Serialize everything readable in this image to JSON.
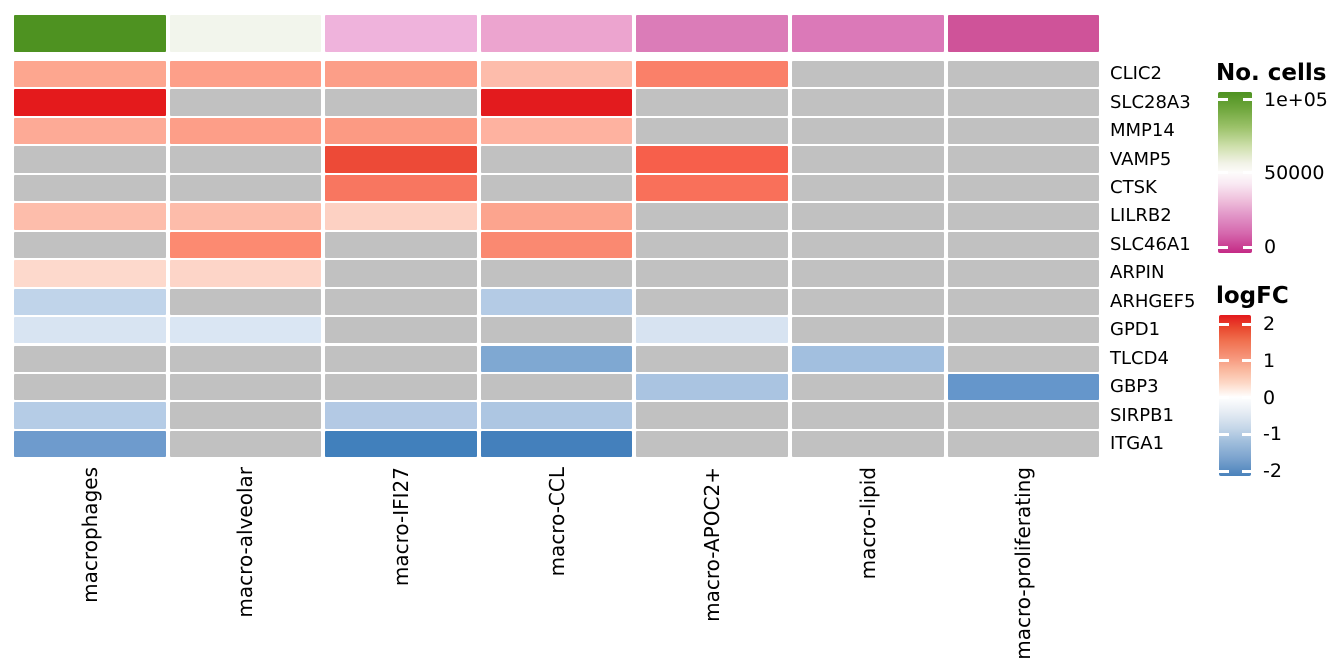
{
  "chart_data": {
    "type": "heatmap",
    "columns": [
      "macrophages",
      "macro-alveolar",
      "macro-IFI27",
      "macro-CCL",
      "macro-APOC2+",
      "macro-lipid",
      "macro-proliferating"
    ],
    "genes": [
      "CLIC2",
      "SLC28A3",
      "MMP14",
      "VAMP5",
      "CTSK",
      "LILRB2",
      "SLC46A1",
      "ARPIN",
      "ARHGEF5",
      "GPD1",
      "TLCD4",
      "GBP3",
      "SIRPB1",
      "ITGA1"
    ],
    "no_data_color": "#c1c1c1",
    "annotation": {
      "label": "No. cells",
      "colors": [
        "#4e9221",
        "#f2f5ec",
        "#efb3dc",
        "#eca4cf",
        "#db7cb8",
        "#db79b8",
        "#cf5399"
      ],
      "approx_values": [
        97000,
        52000,
        33000,
        30000,
        20000,
        20000,
        12000
      ]
    },
    "cells": {
      "colors": [
        [
          "#fda68f",
          "#fd9f89",
          "#fc9e88",
          "#fdbcab",
          "#fa8069",
          "#c1c1c1",
          "#c1c1c1"
        ],
        [
          "#e41a1c",
          "#c1c1c1",
          "#c1c1c1",
          "#e31b1e",
          "#c1c1c1",
          "#c1c1c1",
          "#c1c1c1"
        ],
        [
          "#fdaa96",
          "#fd9e88",
          "#fc9a83",
          "#feb2a0",
          "#c1c1c1",
          "#c1c1c1",
          "#c1c1c1"
        ],
        [
          "#c1c1c1",
          "#c1c1c1",
          "#ed4a37",
          "#c1c1c1",
          "#f75f4b",
          "#c1c1c1",
          "#c1c1c1"
        ],
        [
          "#c1c1c1",
          "#c1c1c1",
          "#f87660",
          "#c1c1c1",
          "#f9705a",
          "#c1c1c1",
          "#c1c1c1"
        ],
        [
          "#fdbdab",
          "#fdbcaa",
          "#fdd1c3",
          "#fca48e",
          "#c1c1c1",
          "#c1c1c1",
          "#c1c1c1"
        ],
        [
          "#c1c1c1",
          "#fc8a71",
          "#c1c1c1",
          "#fa8971",
          "#c1c1c1",
          "#c1c1c1",
          "#c1c1c1"
        ],
        [
          "#fdd9cc",
          "#fdd5c8",
          "#c1c1c1",
          "#c1c1c1",
          "#c1c1c1",
          "#c1c1c1",
          "#c1c1c1"
        ],
        [
          "#c0d4ea",
          "#c1c1c1",
          "#c1c1c1",
          "#b4cbe5",
          "#c1c1c1",
          "#c1c1c1",
          "#c1c1c1"
        ],
        [
          "#d8e4f2",
          "#dae6f3",
          "#c1c1c1",
          "#c1c1c1",
          "#d7e3f1",
          "#c1c1c1",
          "#c1c1c1"
        ],
        [
          "#c1c1c1",
          "#c1c1c1",
          "#c1c1c1",
          "#7fa8d2",
          "#c1c1c1",
          "#a2bfdf",
          "#c1c1c1"
        ],
        [
          "#c1c1c1",
          "#c1c1c1",
          "#c1c1c1",
          "#c1c1c1",
          "#aac4e1",
          "#c1c1c1",
          "#6596cb"
        ],
        [
          "#b5cce6",
          "#c1c1c1",
          "#b3c9e4",
          "#adc6e2",
          "#c1c1c1",
          "#c1c1c1",
          "#c1c1c1"
        ],
        [
          "#6e9bcd",
          "#c1c1c1",
          "#4180bc",
          "#4480bc",
          "#c1c1c1",
          "#c1c1c1",
          "#c1c1c1"
        ]
      ],
      "logfc_estimates": [
        [
          1.0,
          1.05,
          1.05,
          0.75,
          1.3,
          null,
          null
        ],
        [
          2.2,
          null,
          null,
          2.2,
          null,
          null,
          null
        ],
        [
          0.95,
          1.05,
          1.1,
          0.85,
          null,
          null,
          null
        ],
        [
          null,
          null,
          1.8,
          null,
          1.65,
          null,
          null
        ],
        [
          null,
          null,
          1.4,
          null,
          1.45,
          null,
          null
        ],
        [
          0.75,
          0.75,
          0.5,
          1.0,
          null,
          null,
          null
        ],
        [
          null,
          1.25,
          null,
          1.25,
          null,
          null,
          null
        ],
        [
          0.4,
          0.45,
          null,
          null,
          null,
          null,
          null
        ],
        [
          -0.55,
          null,
          null,
          -0.65,
          null,
          null,
          null
        ],
        [
          -0.35,
          -0.3,
          null,
          null,
          -0.35,
          null,
          null
        ],
        [
          null,
          null,
          null,
          -1.1,
          null,
          -0.85,
          null
        ],
        [
          null,
          null,
          null,
          null,
          -0.8,
          null,
          -1.45
        ],
        [
          -0.6,
          null,
          -0.65,
          -0.7,
          null,
          null,
          null
        ],
        [
          -1.35,
          null,
          -1.95,
          -1.9,
          null,
          null,
          null
        ]
      ]
    },
    "legends": {
      "no_cells": {
        "title": "No. cells",
        "ticks": [
          "1e+05",
          "50000",
          "0"
        ],
        "range": [
          100000,
          0
        ],
        "gradient_stops": [
          "#4e9221 0%",
          "#6ea63c 10%",
          "#9cc26a 22%",
          "#cfe0ad 34%",
          "#f1f2e6 44%",
          "#fdfcfb 50%",
          "#f9e9f3 57%",
          "#eebcda 68%",
          "#e298c9 76%",
          "#d567ad 88%",
          "#c42a85 100%"
        ]
      },
      "logfc": {
        "title": "logFC",
        "ticks": [
          "2",
          "1",
          "0",
          "-1",
          "-2"
        ],
        "range": [
          2.25,
          -2.25
        ],
        "gradient_stops": [
          "#e3191c 0%",
          "#e9492f 8%",
          "#f0704f 16%",
          "#f69479 26%",
          "#fab89e 34%",
          "#fdd7c5 42%",
          "#ffffff 51%",
          "#e7edf4 60%",
          "#c6d7e9 70%",
          "#a3c0dd 78%",
          "#7ba3ce 89%",
          "#4a82bb 100%"
        ]
      }
    }
  }
}
